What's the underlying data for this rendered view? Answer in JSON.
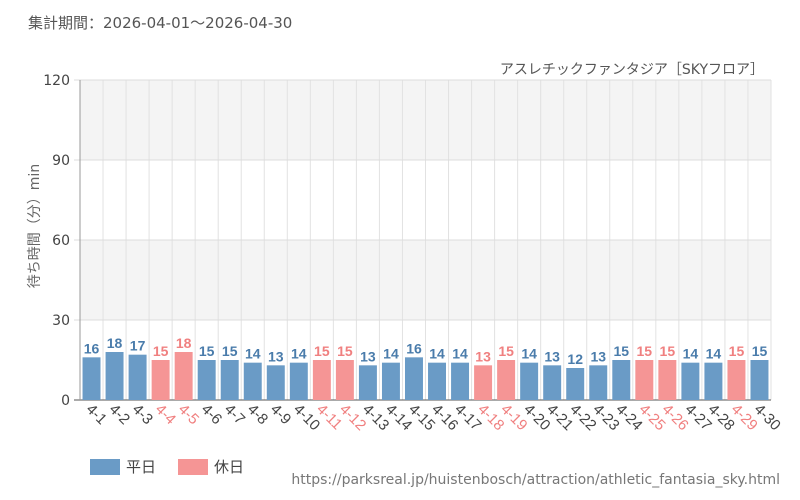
{
  "header": {
    "period": "集計期間：2026-04-01～2026-04-30",
    "subtitle": "アスレチックファンタジア［SKYフロア］"
  },
  "legend": {
    "weekday_label": "平日",
    "holiday_label": "休日"
  },
  "source": "https://parksreal.jp/huistenbosch/attraction/athletic_fantasia_sky.html",
  "chart_data": {
    "type": "bar",
    "ylabel": "待ち時間（分）min",
    "ylim": [
      0,
      120
    ],
    "yticks": [
      0,
      30,
      60,
      90,
      120
    ],
    "grid": true,
    "legend_position": "bottom-left",
    "colors": {
      "weekday": "#6a9bc6",
      "holiday": "#f59595",
      "weekday_text": "#4a7cab",
      "holiday_text": "#f08080"
    },
    "categories": [
      "4-1",
      "4-2",
      "4-3",
      "4-4",
      "4-5",
      "4-6",
      "4-7",
      "4-8",
      "4-9",
      "4-10",
      "4-11",
      "4-12",
      "4-13",
      "4-14",
      "4-15",
      "4-16",
      "4-17",
      "4-18",
      "4-19",
      "4-20",
      "4-21",
      "4-22",
      "4-23",
      "4-24",
      "4-25",
      "4-26",
      "4-27",
      "4-28",
      "4-29",
      "4-30"
    ],
    "values": [
      16,
      18,
      17,
      15,
      18,
      15,
      15,
      14,
      13,
      14,
      15,
      15,
      13,
      14,
      16,
      14,
      14,
      13,
      15,
      14,
      13,
      12,
      13,
      15,
      15,
      15,
      14,
      14,
      15,
      15
    ],
    "day_type": [
      "weekday",
      "weekday",
      "weekday",
      "holiday",
      "holiday",
      "weekday",
      "weekday",
      "weekday",
      "weekday",
      "weekday",
      "holiday",
      "holiday",
      "weekday",
      "weekday",
      "weekday",
      "weekday",
      "weekday",
      "holiday",
      "holiday",
      "weekday",
      "weekday",
      "weekday",
      "weekday",
      "weekday",
      "holiday",
      "holiday",
      "weekday",
      "weekday",
      "holiday",
      "weekday"
    ]
  }
}
